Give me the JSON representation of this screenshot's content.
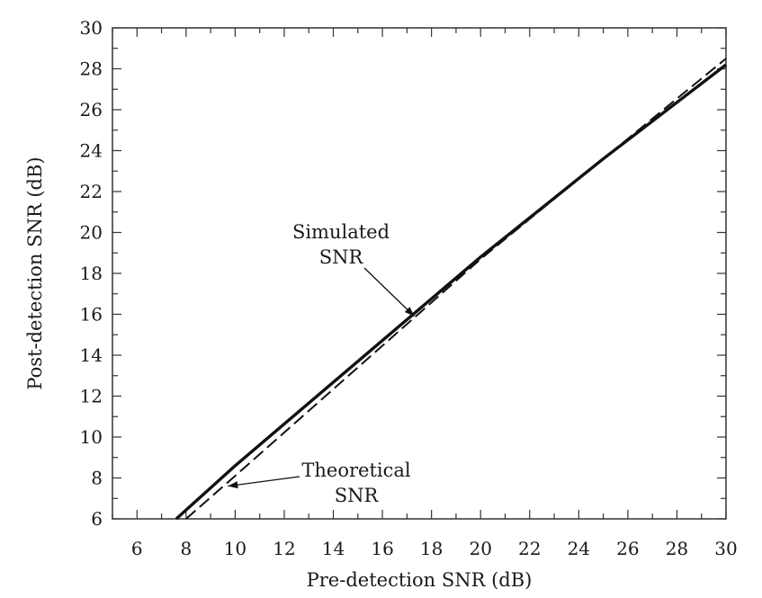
{
  "chart_data": {
    "type": "line",
    "title": "",
    "xlabel": "Pre-detection SNR (dB)",
    "ylabel": "Post-detection SNR (dB)",
    "xlim": [
      5,
      30
    ],
    "ylim": [
      6,
      30
    ],
    "x_ticks": [
      6,
      8,
      10,
      12,
      14,
      16,
      18,
      20,
      22,
      24,
      26,
      28,
      30
    ],
    "y_ticks": [
      6,
      8,
      10,
      12,
      14,
      16,
      18,
      20,
      22,
      24,
      26,
      28,
      30
    ],
    "grid": false,
    "series": [
      {
        "name": "Simulated SNR",
        "style": "solid",
        "color": "#111111",
        "x": [
          7.6,
          10,
          15,
          20,
          25,
          30
        ],
        "y": [
          6.0,
          8.6,
          13.7,
          18.8,
          23.6,
          28.2
        ]
      },
      {
        "name": "Theoretical SNR",
        "style": "dashed",
        "color": "#111111",
        "x": [
          8.0,
          10,
          15,
          20,
          25,
          30
        ],
        "y": [
          6.0,
          8.1,
          13.4,
          18.7,
          23.6,
          28.5
        ]
      }
    ],
    "annotations": [
      {
        "lines": [
          "Simulated",
          "SNR"
        ],
        "points_to": "Simulated SNR",
        "at": [
          17.3,
          15.9
        ]
      },
      {
        "lines": [
          "Theoretical",
          "SNR"
        ],
        "points_to": "Theoretical SNR",
        "at": [
          9.7,
          7.6
        ]
      }
    ]
  }
}
